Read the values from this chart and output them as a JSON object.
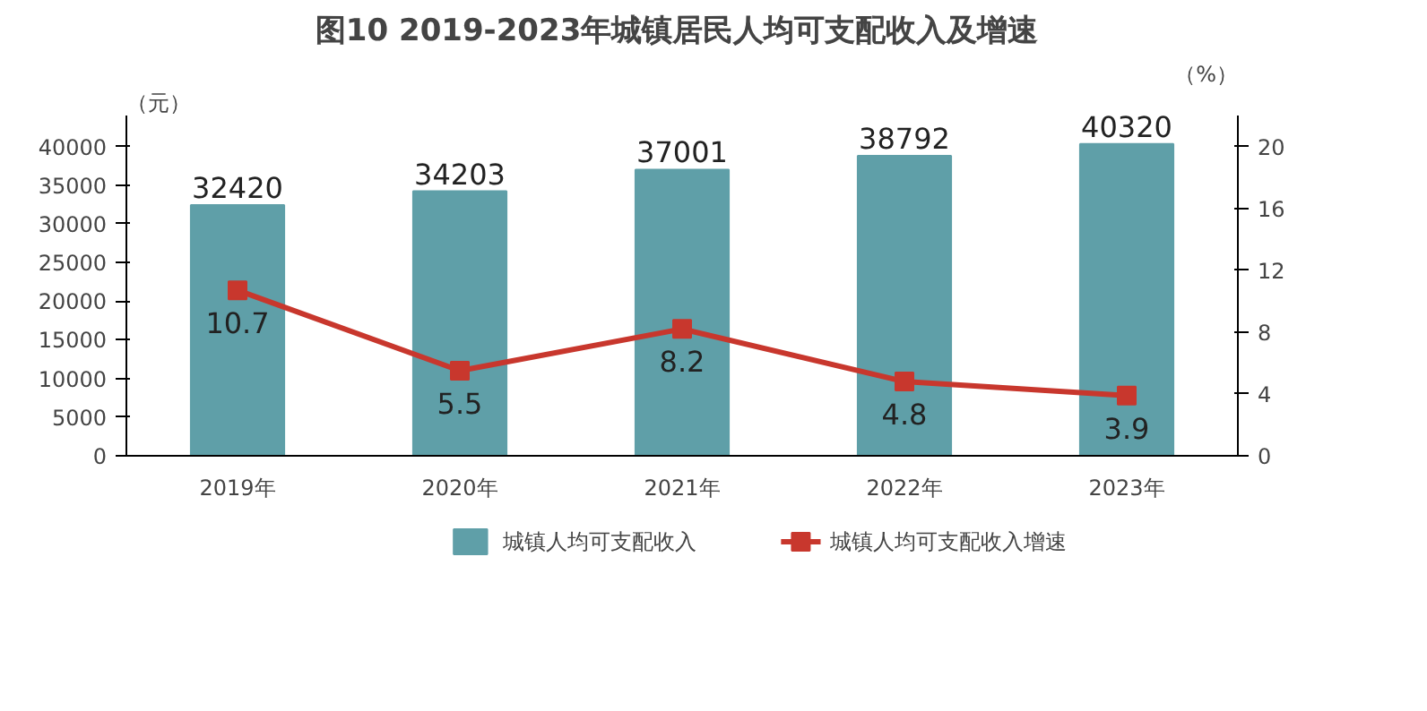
{
  "chart_data": {
    "type": "bar",
    "title": "图10  2019-2023年城镇居民人均可支配收入及增速",
    "ylabel": "（元）",
    "y2label": "（%）",
    "categories": [
      "2019年",
      "2020年",
      "2021年",
      "2022年",
      "2023年"
    ],
    "series": [
      {
        "name": "城镇人均可支配收入",
        "color": "#5f9fa8",
        "values": [
          32420,
          34203,
          37001,
          38792,
          40320
        ]
      },
      {
        "name": "城镇人均可支配收入增速",
        "type": "line",
        "axis": "y2",
        "color": "#c8372d",
        "marker": "square",
        "values": [
          10.7,
          5.5,
          8.2,
          4.8,
          3.9
        ]
      }
    ],
    "ylim": [
      0,
      44000
    ],
    "yticks": [
      0,
      5000,
      10000,
      15000,
      20000,
      25000,
      30000,
      35000,
      40000
    ],
    "y2lim": [
      0,
      22
    ],
    "y2ticks": [
      0,
      4,
      8,
      12,
      16,
      20
    ],
    "data_labels": true,
    "grid": false,
    "legend": "bottom"
  }
}
